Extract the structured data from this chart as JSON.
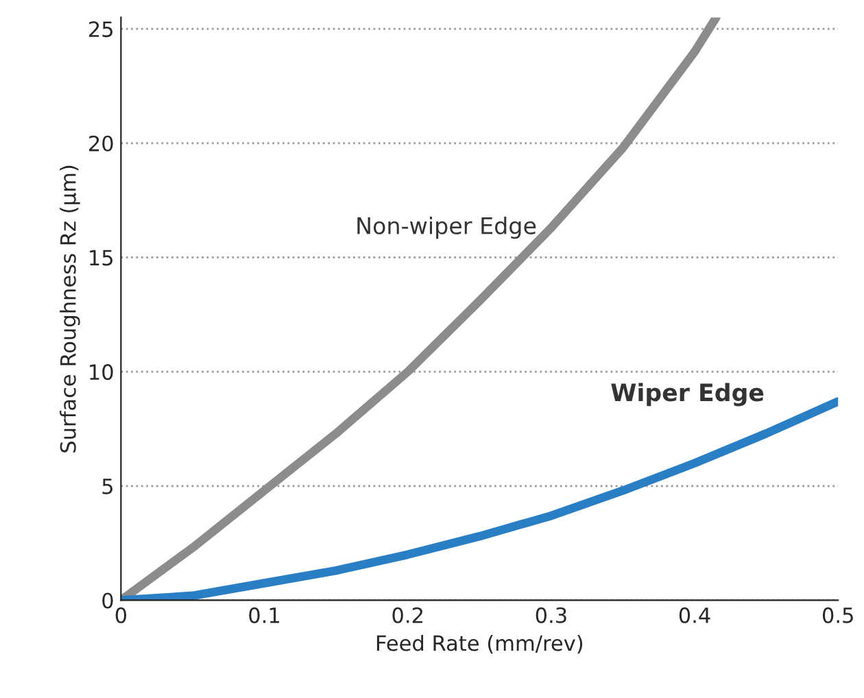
{
  "chart_data": {
    "type": "line",
    "xlabel": "Feed Rate (mm/rev)",
    "ylabel": "Surface Roughness Rz (μm)",
    "xlim": [
      0,
      0.5
    ],
    "ylim": [
      0,
      25.5
    ],
    "xticks": [
      0,
      0.1,
      0.2,
      0.3,
      0.4,
      0.5
    ],
    "yticks": [
      0,
      5,
      10,
      15,
      20,
      25
    ],
    "grid": "y",
    "legend": false,
    "marker": "none",
    "line_style": "solid",
    "series": [
      {
        "name": "Non-wiper Edge",
        "color": "#8c8c8c",
        "x": [
          0,
          0.05,
          0.1,
          0.15,
          0.2,
          0.25,
          0.3,
          0.35,
          0.4,
          0.415
        ],
        "values": [
          0,
          2.3,
          4.8,
          7.3,
          10,
          13.1,
          16.3,
          19.8,
          24.0,
          25.5
        ]
      },
      {
        "name": "Wiper Edge",
        "color": "#2a7fc4",
        "x": [
          0,
          0.05,
          0.1,
          0.15,
          0.2,
          0.25,
          0.3,
          0.35,
          0.4,
          0.45,
          0.5
        ],
        "values": [
          0,
          0.2,
          0.75,
          1.3,
          2.0,
          2.8,
          3.7,
          4.8,
          6.0,
          7.3,
          8.7
        ]
      }
    ]
  }
}
